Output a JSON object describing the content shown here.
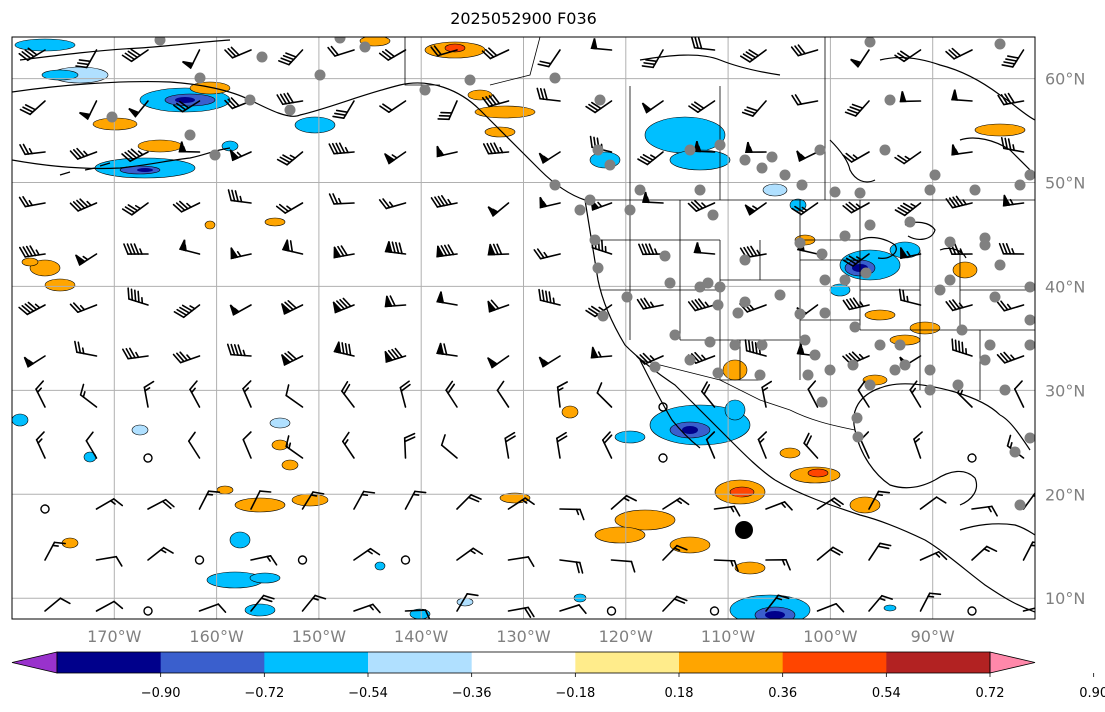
{
  "title": "2025052900 F036",
  "map": {
    "lon_range": [
      -180,
      -80
    ],
    "lat_range": [
      8,
      64
    ],
    "gridlines": true,
    "lon_ticks": [
      "170°W",
      "160°W",
      "150°W",
      "140°W",
      "130°W",
      "120°W",
      "110°W",
      "100°W",
      "90°W"
    ],
    "lat_ticks": [
      "60°N",
      "50°N",
      "40°N",
      "30°N",
      "20°N",
      "10°N"
    ],
    "layers": [
      "coastlines",
      "state-borders",
      "filled-contours",
      "wind-barbs",
      "station-dots"
    ]
  },
  "colorbar": {
    "orientation": "horizontal",
    "extend": "both",
    "colors": [
      "#9932cc",
      "#00008b",
      "#3a5fcd",
      "#00bfff",
      "#b0e0ff",
      "#ffffff",
      "#ffec8b",
      "#ffa500",
      "#ff4500",
      "#b22222",
      "#ff88aa"
    ],
    "tick_labels": [
      "−0.90",
      "−0.72",
      "−0.54",
      "−0.36",
      "−0.18",
      "0.18",
      "0.36",
      "0.54",
      "0.72",
      "0.90"
    ]
  },
  "station_color": "#808080",
  "marker_color": "#000000"
}
